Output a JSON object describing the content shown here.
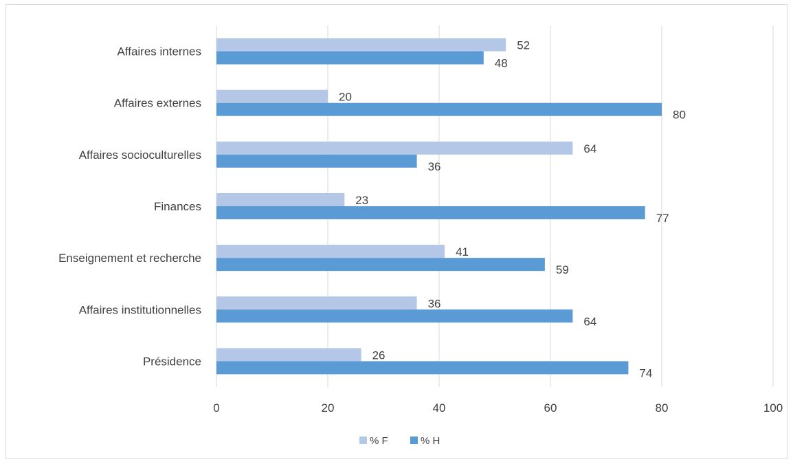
{
  "chart_data": {
    "type": "bar",
    "orientation": "horizontal",
    "title": "",
    "xlabel": "",
    "ylabel": "",
    "categories": [
      "Affaires internes",
      "Affaires externes",
      "Affaires socioculturelles",
      "Finances",
      "Enseignement et recherche",
      "Affaires institutionnelles",
      "Présidence"
    ],
    "series": [
      {
        "name": "% F",
        "color": "#b4c7e7",
        "values": [
          52,
          20,
          64,
          23,
          41,
          36,
          26
        ]
      },
      {
        "name": "% H",
        "color": "#5b9bd5",
        "values": [
          48,
          80,
          36,
          77,
          59,
          64,
          74
        ]
      }
    ],
    "xlim": [
      0,
      100
    ],
    "xticks": [
      0,
      20,
      40,
      60,
      80,
      100
    ],
    "grid": true,
    "legend_position": "bottom",
    "data_labels": true
  }
}
